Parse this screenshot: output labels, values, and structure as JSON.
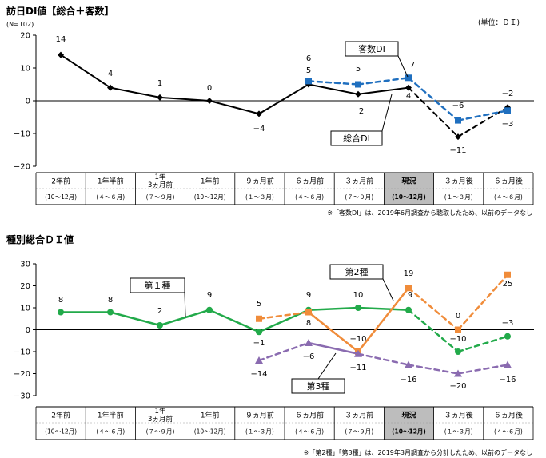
{
  "period_labels": [
    {
      "top": [
        "2年前"
      ],
      "sub": "(10～12月)"
    },
    {
      "top": [
        "1年半前"
      ],
      "sub": "(４～６月)"
    },
    {
      "top": [
        "1年",
        "3ヵ月前"
      ],
      "sub": "(７～９月)"
    },
    {
      "top": [
        "1年前"
      ],
      "sub": "(10～12月)"
    },
    {
      "top": [
        "９ヵ月前"
      ],
      "sub": "(１～３月)"
    },
    {
      "top": [
        "６ヵ月前"
      ],
      "sub": "(４～６月)"
    },
    {
      "top": [
        "３ヵ月前"
      ],
      "sub": "(７～９月)"
    },
    {
      "top": [
        "現況"
      ],
      "sub": "(10～12月)",
      "highlight": true
    },
    {
      "top": [
        "３ヵ月後"
      ],
      "sub": "(１～３月)"
    },
    {
      "top": [
        "６ヵ月後"
      ],
      "sub": "(４～６月)"
    }
  ],
  "chart_data": [
    {
      "type": "line",
      "title": "訪日DI値【総合＋客数】",
      "subtitle": "(N=102)",
      "unit_label": "(単位：ＤＩ)",
      "ylim": [
        -20,
        20
      ],
      "yticks": [
        20,
        10,
        0,
        -10,
        -20
      ],
      "grid": false,
      "footnote": "※「客数DI」は、2019年6月調査から聴取したため、以前のデータなし",
      "series": [
        {
          "name": "総合DI",
          "color": "#000000",
          "marker": "diamond",
          "values": [
            14,
            4,
            1,
            0,
            -4,
            5,
            2,
            4,
            -11,
            -2
          ],
          "dashed_from_index": 7
        },
        {
          "name": "客数DI",
          "color": "#1f6fbf",
          "marker": "square",
          "values": [
            null,
            null,
            null,
            null,
            null,
            6,
            5,
            7,
            -6,
            -3
          ],
          "dashed_from_index": 5,
          "dashed_all": true
        }
      ],
      "annotations": [
        {
          "text": "14"
        },
        {
          "text": "4"
        },
        {
          "text": "1"
        },
        {
          "text": "0"
        },
        {
          "text": "-4"
        },
        {
          "text": "6"
        },
        {
          "text": "5"
        },
        {
          "text": "5"
        },
        {
          "text": "2"
        },
        {
          "text": "7"
        },
        {
          "text": "4"
        },
        {
          "text": "-6"
        },
        {
          "text": "-11"
        },
        {
          "text": "-2"
        },
        {
          "text": "-3"
        }
      ]
    },
    {
      "type": "line",
      "title": "種別総合ＤＩ値",
      "ylim": [
        -30,
        30
      ],
      "yticks": [
        30,
        20,
        10,
        0,
        -10,
        -20,
        -30
      ],
      "grid": false,
      "footnote": "※「第2種」「第3種」は、2019年3月調査から分計したため、以前のデータなし",
      "series": [
        {
          "name": "第１種",
          "color": "#22aa4a",
          "marker": "circle",
          "values": [
            8,
            8,
            2,
            9,
            -1,
            9,
            10,
            9,
            -10,
            -3
          ]
        },
        {
          "name": "第2種",
          "color": "#f08c3a",
          "marker": "square",
          "values": [
            null,
            null,
            null,
            null,
            5,
            8,
            -10,
            19,
            0,
            25
          ]
        },
        {
          "name": "第3種",
          "color": "#8a6bb0",
          "marker": "triangle",
          "values": [
            null,
            null,
            null,
            null,
            -14,
            -6,
            -11,
            -16,
            -20,
            -16
          ]
        }
      ],
      "annotations": [
        {
          "text": "8"
        },
        {
          "text": "8"
        },
        {
          "text": "2"
        },
        {
          "text": "9"
        },
        {
          "text": "5"
        },
        {
          "text": "-1"
        },
        {
          "text": "-14"
        },
        {
          "text": "9"
        },
        {
          "text": "8"
        },
        {
          "text": "-6"
        },
        {
          "text": "10"
        },
        {
          "text": "-10"
        },
        {
          "text": "-11"
        },
        {
          "text": "19"
        },
        {
          "text": "9"
        },
        {
          "text": "-16"
        },
        {
          "text": "0"
        },
        {
          "text": "-10"
        },
        {
          "text": "-20"
        },
        {
          "text": "25"
        },
        {
          "text": "-3"
        },
        {
          "text": "-16"
        }
      ]
    }
  ]
}
